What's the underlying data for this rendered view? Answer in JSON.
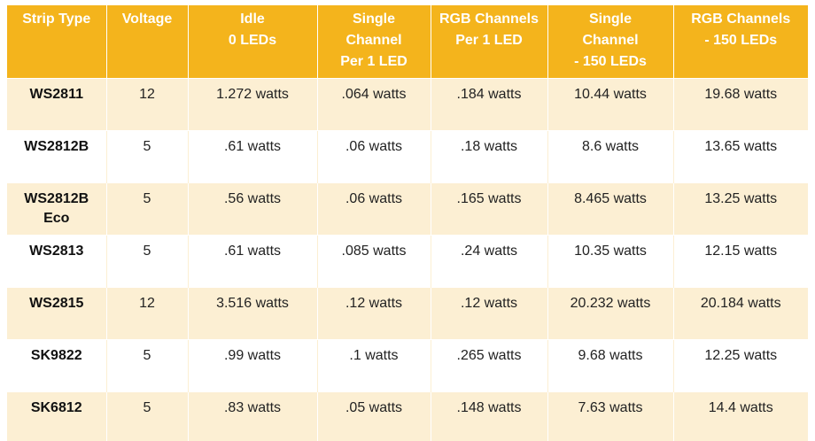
{
  "table": {
    "headers": [
      [
        "Strip Type"
      ],
      [
        "Voltage"
      ],
      [
        "Idle",
        "0 LEDs"
      ],
      [
        "Single",
        "Channel",
        "Per 1 LED"
      ],
      [
        "RGB Channels",
        "Per 1 LED"
      ],
      [
        "Single",
        "Channel",
        "- 150 LEDs"
      ],
      [
        "RGB Channels",
        "- 150 LEDs"
      ]
    ],
    "rows": [
      {
        "strip": [
          "WS2811"
        ],
        "voltage": "12",
        "idle": "1.272 watts",
        "single_per_led": ".064 watts",
        "rgb_per_led": ".184 watts",
        "single_150": "10.44 watts",
        "rgb_150": "19.68 watts"
      },
      {
        "strip": [
          "WS2812B"
        ],
        "voltage": "5",
        "idle": ".61 watts",
        "single_per_led": ".06 watts",
        "rgb_per_led": ".18 watts",
        "single_150": "8.6 watts",
        "rgb_150": "13.65 watts"
      },
      {
        "strip": [
          "WS2812B",
          "Eco"
        ],
        "voltage": "5",
        "idle": ".56 watts",
        "single_per_led": ".06 watts",
        "rgb_per_led": ".165 watts",
        "single_150": "8.465 watts",
        "rgb_150": "13.25 watts"
      },
      {
        "strip": [
          "WS2813"
        ],
        "voltage": "5",
        "idle": ".61 watts",
        "single_per_led": ".085 watts",
        "rgb_per_led": ".24 watts",
        "single_150": "10.35 watts",
        "rgb_150": "12.15 watts"
      },
      {
        "strip": [
          "WS2815"
        ],
        "voltage": "12",
        "idle": "3.516 watts",
        "single_per_led": ".12 watts",
        "rgb_per_led": ".12 watts",
        "single_150": "20.232 watts",
        "rgb_150": "20.184 watts"
      },
      {
        "strip": [
          "SK9822"
        ],
        "voltage": "5",
        "idle": ".99 watts",
        "single_per_led": ".1 watts",
        "rgb_per_led": ".265 watts",
        "single_150": "9.68 watts",
        "rgb_150": "12.25 watts"
      },
      {
        "strip": [
          "SK6812"
        ],
        "voltage": "5",
        "idle": ".83 watts",
        "single_per_led": ".05 watts",
        "rgb_per_led": ".148 watts",
        "single_150": "7.63 watts",
        "rgb_150": "14.4 watts"
      }
    ]
  },
  "colors": {
    "header_bg": "#f4b41c",
    "header_text": "#ffffff",
    "odd_row_bg": "#fcefd3",
    "even_row_bg": "#ffffff"
  }
}
